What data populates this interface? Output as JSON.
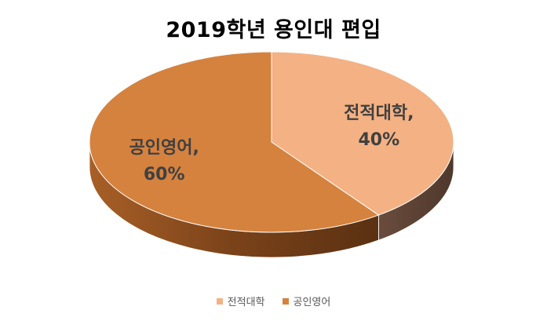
{
  "chart_data": {
    "type": "pie",
    "title": "2019학년 용인대 편입",
    "categories": [
      "전적대학",
      "공인영어"
    ],
    "values": [
      40,
      60
    ],
    "value_labels": [
      "40%",
      "60%"
    ],
    "colors": [
      "#F4B183",
      "#D5823F"
    ],
    "side_colors": [
      "#5E4436",
      "#8A4A1E"
    ],
    "legend_position": "bottom",
    "three_d": true
  }
}
